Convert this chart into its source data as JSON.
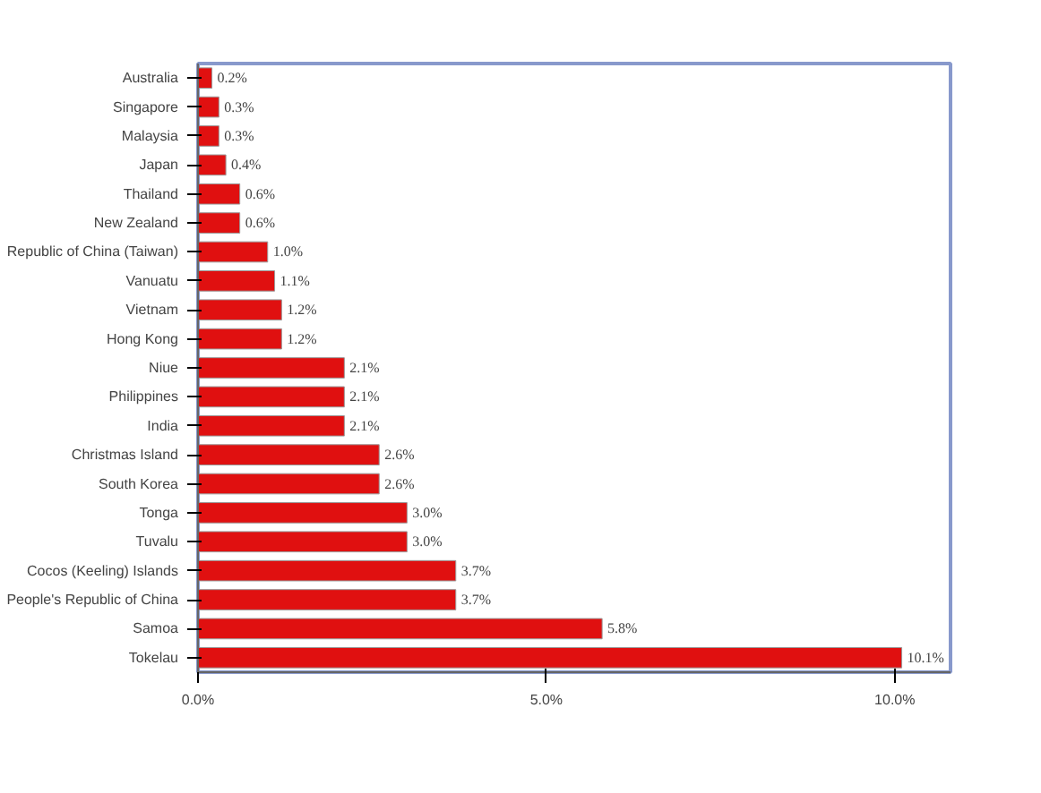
{
  "chart_data": {
    "type": "bar",
    "orientation": "horizontal",
    "categories": [
      "Australia",
      "Singapore",
      "Malaysia",
      "Japan",
      "Thailand",
      "New Zealand",
      "Republic of China (Taiwan)",
      "Vanuatu",
      "Vietnam",
      "Hong Kong",
      "Niue",
      "Philippines",
      "India",
      "Christmas Island",
      "South Korea",
      "Tonga",
      "Tuvalu",
      "Cocos (Keeling) Islands",
      "People's Republic of China",
      "Samoa",
      "Tokelau"
    ],
    "values": [
      0.2,
      0.3,
      0.3,
      0.4,
      0.6,
      0.6,
      1.0,
      1.1,
      1.2,
      1.2,
      2.1,
      2.1,
      2.1,
      2.6,
      2.6,
      3.0,
      3.0,
      3.7,
      3.7,
      5.8,
      10.1
    ],
    "value_labels": [
      "0.2%",
      "0.3%",
      "0.3%",
      "0.4%",
      "0.6%",
      "0.6%",
      "1.0%",
      "1.1%",
      "1.2%",
      "1.2%",
      "2.1%",
      "2.1%",
      "2.1%",
      "2.6%",
      "2.6%",
      "3.0%",
      "3.0%",
      "3.7%",
      "3.7%",
      "5.8%",
      "10.1%"
    ],
    "color": "#e01010",
    "xlim": [
      0,
      10.8
    ],
    "xticks": [
      {
        "value": 0,
        "label": "0.0%"
      },
      {
        "value": 5,
        "label": "5.0%"
      },
      {
        "value": 10,
        "label": "10.0%"
      }
    ],
    "grid": false
  }
}
